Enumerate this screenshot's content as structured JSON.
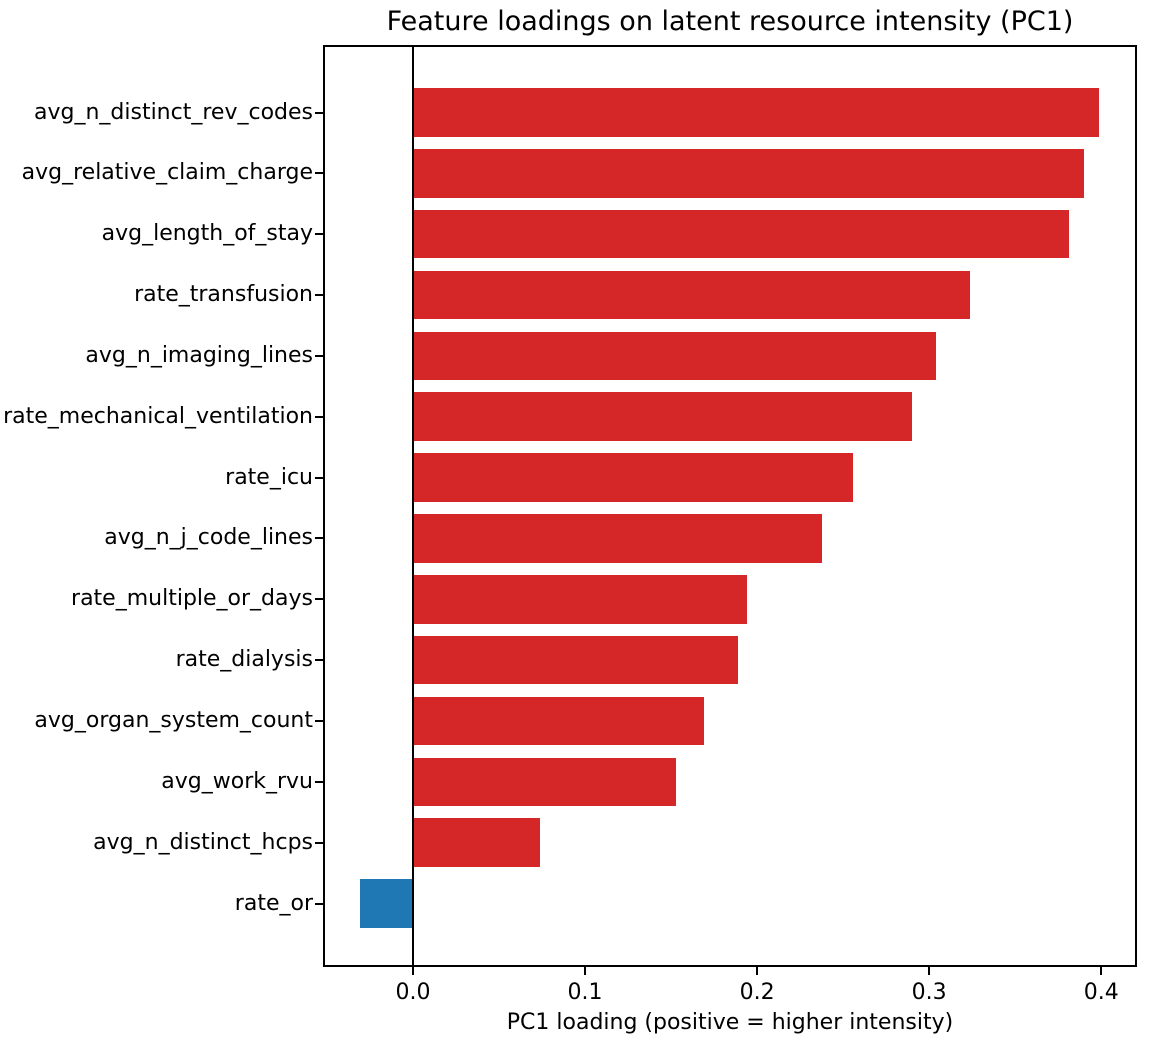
{
  "chart_data": {
    "type": "bar",
    "orientation": "horizontal",
    "title": "Feature loadings on latent resource intensity (PC1)",
    "xlabel": "PC1 loading (positive = higher intensity)",
    "ylabel": "",
    "categories": [
      "avg_n_distinct_rev_codes",
      "avg_relative_claim_charge",
      "avg_length_of_stay",
      "rate_transfusion",
      "avg_n_imaging_lines",
      "rate_mechanical_ventilation",
      "rate_icu",
      "avg_n_j_code_lines",
      "rate_multiple_or_days",
      "rate_dialysis",
      "avg_organ_system_count",
      "avg_work_rvu",
      "avg_n_distinct_hcps",
      "rate_or"
    ],
    "values": [
      0.399,
      0.39,
      0.381,
      0.324,
      0.304,
      0.29,
      0.256,
      0.238,
      0.194,
      0.189,
      0.169,
      0.153,
      0.074,
      -0.031
    ],
    "xticks": [
      0.0,
      0.1,
      0.2,
      0.3,
      0.4
    ],
    "xtick_labels": [
      "0.0",
      "0.1",
      "0.2",
      "0.3",
      "0.4"
    ],
    "xlim": [
      -0.0523,
      0.4208
    ],
    "grid": false,
    "legend": null,
    "positive_color": "#d62728",
    "negative_color": "#1f77b4",
    "axis_color": "#000000",
    "background_color": "#ffffff"
  }
}
